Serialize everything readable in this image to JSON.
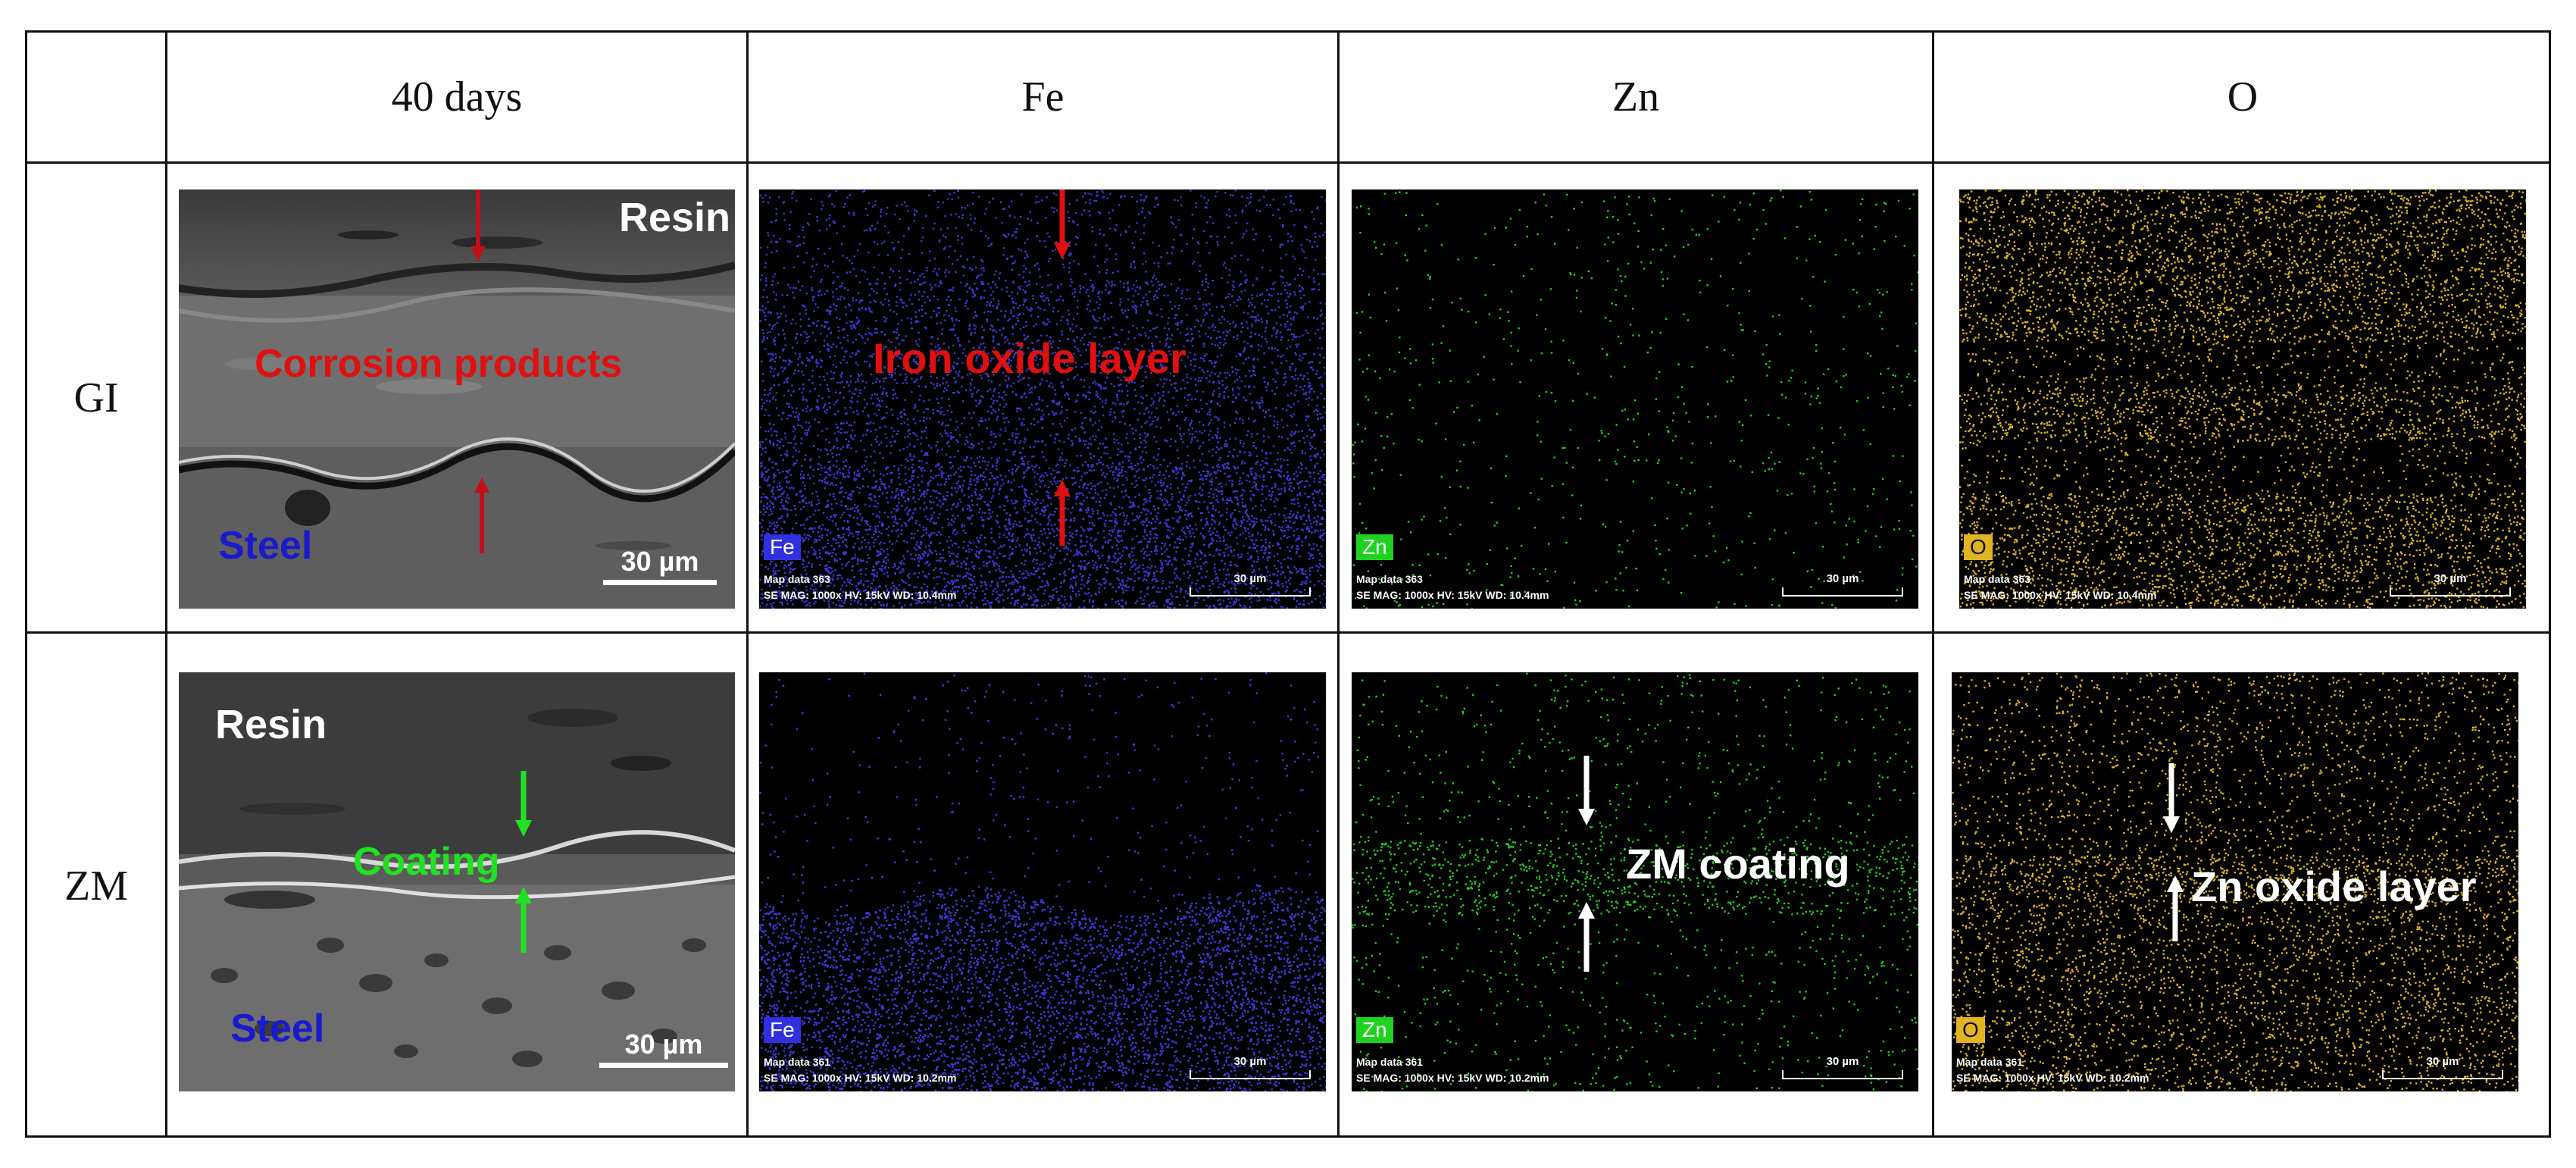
{
  "table": {
    "headers": [
      "40 days",
      "Fe",
      "Zn",
      "O"
    ],
    "rows": [
      {
        "label": "GI",
        "sem": {
          "top_label": "Resin",
          "mid_label": "Corrosion products",
          "bottom_label": "Steel",
          "scale": "30 µm"
        },
        "fe": {
          "badge": "Fe",
          "annotation": "Iron oxide layer",
          "map": "Map data 363",
          "params": "SE  MAG: 1000x  HV: 15kV  WD: 10.4mm",
          "scale": "30 µm"
        },
        "zn": {
          "badge": "Zn",
          "map": "Map data 363",
          "params": "SE  MAG: 1000x  HV: 15kV  WD: 10.4mm",
          "scale": "30 µm"
        },
        "o": {
          "badge": "O",
          "map": "Map data 363",
          "params": "SE  MAG: 1000x  HV: 15kV  WD: 10.4mm",
          "scale": "30 µm"
        }
      },
      {
        "label": "ZM",
        "sem": {
          "top_label": "Resin",
          "mid_label": "Coating",
          "bottom_label": "Steel",
          "scale": "30 µm"
        },
        "fe": {
          "badge": "Fe",
          "map": "Map data 361",
          "params": "SE  MAG: 1000x  HV: 15kV  WD: 10.2mm",
          "scale": "30 µm"
        },
        "zn": {
          "badge": "Zn",
          "annotation": "ZM coating",
          "map": "Map data 361",
          "params": "SE  MAG: 1000x  HV: 15kV  WD: 10.2mm",
          "scale": "30 µm"
        },
        "o": {
          "badge": "O",
          "annotation": "Zn oxide layer",
          "map": "Map data 361",
          "params": "SE  MAG: 1000x  HV: 15kV  WD: 10.2mm",
          "scale": "30 µm"
        }
      }
    ]
  },
  "colors": {
    "fe_map": "#3a3ad8",
    "zn_map": "#1fd21f",
    "o_map": "#e0b423",
    "red_label": "#e01010",
    "arrow_red": "#c0101a",
    "steel_label": "#1a1acc",
    "coating_label": "#22e022"
  }
}
